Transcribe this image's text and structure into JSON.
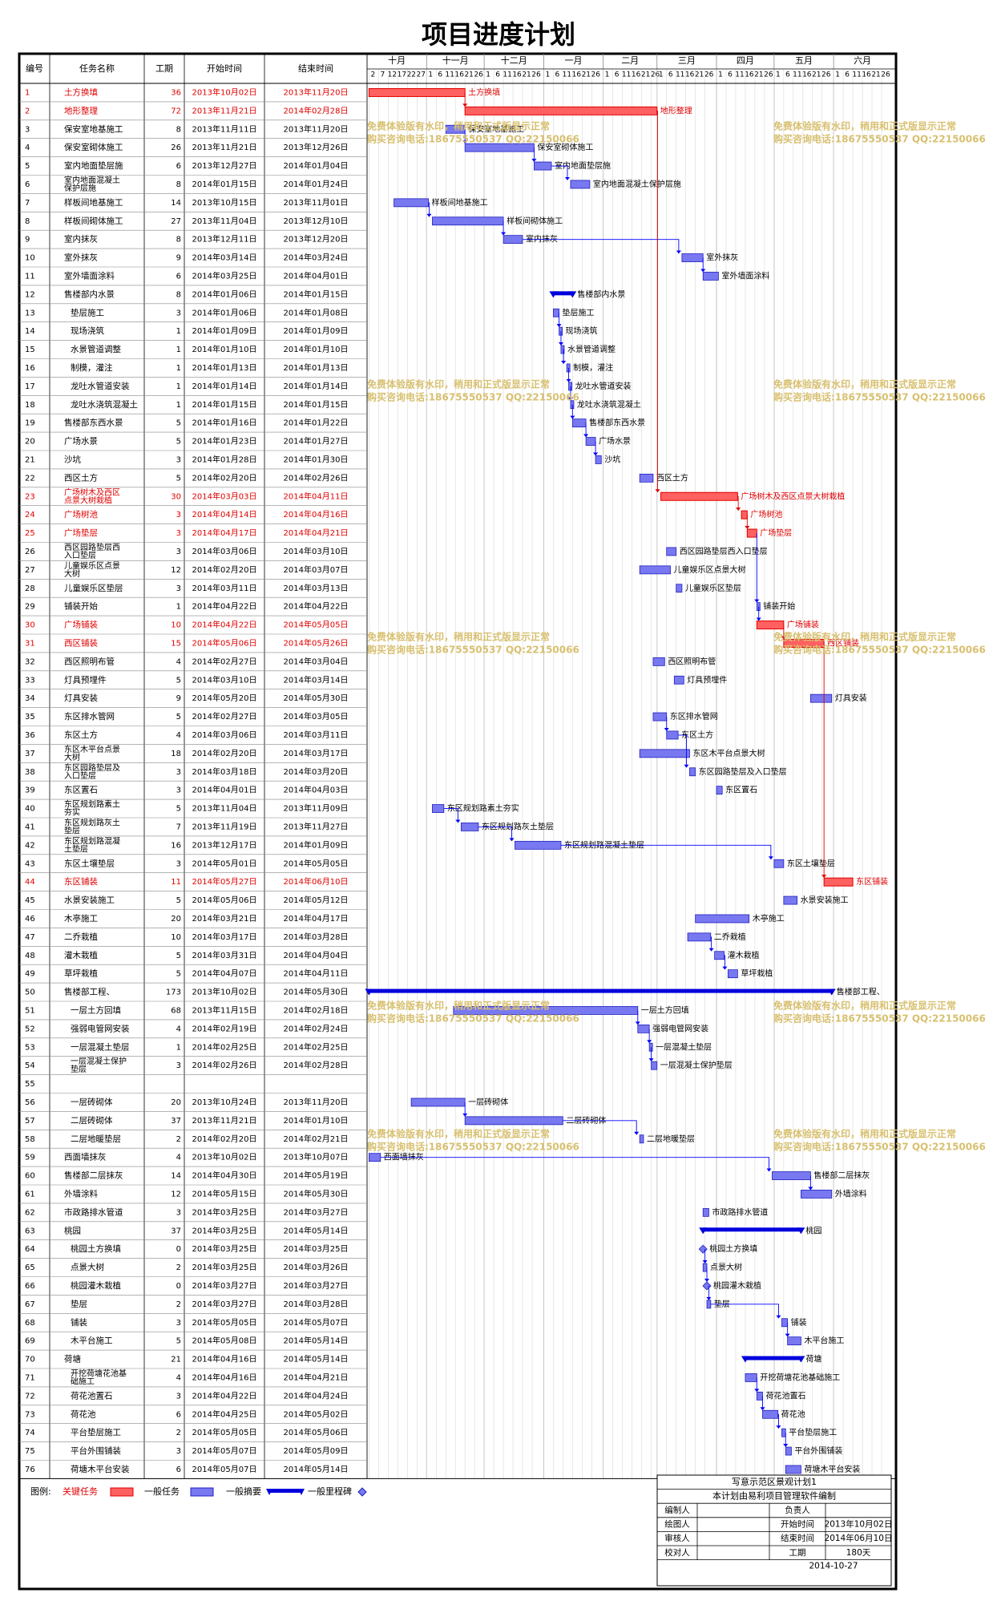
{
  "title": "项目进度计划",
  "headers": {
    "id": "编号",
    "name": "任务名称",
    "dur": "工期",
    "start": "开始时间",
    "end": "结束时间"
  },
  "months": [
    "十月",
    "十一月",
    "十二月",
    "一月",
    "二月",
    "三月",
    "四月",
    "五月",
    "六月"
  ],
  "day_ticks": [
    "1",
    "6",
    "11",
    "16",
    "21",
    "26"
  ],
  "oct_ticks": [
    "2",
    "7",
    "12",
    "17",
    "22",
    "27"
  ],
  "watermark": {
    "line1": "免费体验版有水印，稍用和正式版显示正常",
    "line2": "购买咨询电话:18675550537 QQ:22150066"
  },
  "colors": {
    "critical": "#ff6060",
    "critical_border": "#e00000",
    "normal": "#7878f0",
    "normal_border": "#2020c0",
    "summary": "#0000dd",
    "link": "#0000ff",
    "watermark": "#d8c070"
  },
  "chart_data": {
    "type": "gantt",
    "title": "项目进度计划",
    "timeline_start": "2013-10-01",
    "timeline_end": "2014-06-30",
    "tasks": [
      {
        "id": "1",
        "name": "土方换填",
        "dur": "36",
        "start": "2013年10月02日",
        "end": "2013年11月20日",
        "kind": "critical"
      },
      {
        "id": "2",
        "name": "地形整理",
        "dur": "72",
        "start": "2013年11月21日",
        "end": "2014年02月28日",
        "kind": "critical"
      },
      {
        "id": "3",
        "name": "保安室地基施工",
        "dur": "8",
        "start": "2013年11月11日",
        "end": "2013年11月20日",
        "kind": "normal"
      },
      {
        "id": "4",
        "name": "保安室砌体施工",
        "dur": "26",
        "start": "2013年11月21日",
        "end": "2013年12月26日",
        "kind": "normal"
      },
      {
        "id": "5",
        "name": "室内地面垫层施",
        "dur": "6",
        "start": "2013年12月27日",
        "end": "2014年01月04日",
        "kind": "normal"
      },
      {
        "id": "6",
        "name": "室内地面混凝土保护层施",
        "dur": "8",
        "start": "2014年01月15日",
        "end": "2014年01月24日",
        "kind": "normal"
      },
      {
        "id": "7",
        "name": "样板间地基施工",
        "dur": "14",
        "start": "2013年10月15日",
        "end": "2013年11月01日",
        "kind": "normal"
      },
      {
        "id": "8",
        "name": "样板间砌体施工",
        "dur": "27",
        "start": "2013年11月04日",
        "end": "2013年12月10日",
        "kind": "normal"
      },
      {
        "id": "9",
        "name": "室内抹灰",
        "dur": "8",
        "start": "2013年12月11日",
        "end": "2013年12月20日",
        "kind": "normal"
      },
      {
        "id": "10",
        "name": "室外抹灰",
        "dur": "9",
        "start": "2014年03月14日",
        "end": "2014年03月24日",
        "kind": "normal"
      },
      {
        "id": "11",
        "name": "室外墙面涂料",
        "dur": "6",
        "start": "2014年03月25日",
        "end": "2014年04月01日",
        "kind": "normal"
      },
      {
        "id": "12",
        "name": "售楼部内水景",
        "dur": "8",
        "start": "2014年01月06日",
        "end": "2014年01月15日",
        "kind": "summary"
      },
      {
        "id": "13",
        "name": "垫层施工",
        "dur": "3",
        "start": "2014年01月06日",
        "end": "2014年01月08日",
        "kind": "normal",
        "indent": 1
      },
      {
        "id": "14",
        "name": "现场浇筑",
        "dur": "1",
        "start": "2014年01月09日",
        "end": "2014年01月09日",
        "kind": "normal",
        "indent": 1
      },
      {
        "id": "15",
        "name": "水景管道调整",
        "dur": "1",
        "start": "2014年01月10日",
        "end": "2014年01月10日",
        "kind": "normal",
        "indent": 1
      },
      {
        "id": "16",
        "name": "制模，灌注",
        "dur": "1",
        "start": "2014年01月13日",
        "end": "2014年01月13日",
        "kind": "normal",
        "indent": 1
      },
      {
        "id": "17",
        "name": "龙吐水管道安装",
        "dur": "1",
        "start": "2014年01月14日",
        "end": "2014年01月14日",
        "kind": "normal",
        "indent": 1
      },
      {
        "id": "18",
        "name": "龙吐水浇筑混凝土",
        "dur": "1",
        "start": "2014年01月15日",
        "end": "2014年01月15日",
        "kind": "normal",
        "indent": 1
      },
      {
        "id": "19",
        "name": "售楼部东西水景",
        "dur": "5",
        "start": "2014年01月16日",
        "end": "2014年01月22日",
        "kind": "normal"
      },
      {
        "id": "20",
        "name": "广场水景",
        "dur": "5",
        "start": "2014年01月23日",
        "end": "2014年01月27日",
        "kind": "normal"
      },
      {
        "id": "21",
        "name": "沙坑",
        "dur": "3",
        "start": "2014年01月28日",
        "end": "2014年01月30日",
        "kind": "normal"
      },
      {
        "id": "22",
        "name": "西区土方",
        "dur": "5",
        "start": "2014年02月20日",
        "end": "2014年02月26日",
        "kind": "normal"
      },
      {
        "id": "23",
        "name": "广场树木及西区点景大树栽植",
        "dur": "30",
        "start": "2014年03月03日",
        "end": "2014年04月11日",
        "kind": "critical"
      },
      {
        "id": "24",
        "name": "广场树池",
        "dur": "3",
        "start": "2014年04月14日",
        "end": "2014年04月16日",
        "kind": "critical"
      },
      {
        "id": "25",
        "name": "广场垫层",
        "dur": "3",
        "start": "2014年04月17日",
        "end": "2014年04月21日",
        "kind": "critical"
      },
      {
        "id": "26",
        "name": "西区园路垫层西入口垫层",
        "dur": "3",
        "start": "2014年03月06日",
        "end": "2014年03月10日",
        "kind": "normal"
      },
      {
        "id": "27",
        "name": "儿童娱乐区点景大树",
        "dur": "12",
        "start": "2014年02月20日",
        "end": "2014年03月07日",
        "kind": "normal"
      },
      {
        "id": "28",
        "name": "儿童娱乐区垫层",
        "dur": "3",
        "start": "2014年03月11日",
        "end": "2014年03月13日",
        "kind": "normal"
      },
      {
        "id": "29",
        "name": "铺装开始",
        "dur": "1",
        "start": "2014年04月22日",
        "end": "2014年04月22日",
        "kind": "normal"
      },
      {
        "id": "30",
        "name": "广场铺装",
        "dur": "10",
        "start": "2014年04月22日",
        "end": "2014年05月05日",
        "kind": "critical"
      },
      {
        "id": "31",
        "name": "西区铺装",
        "dur": "15",
        "start": "2014年05月06日",
        "end": "2014年05月26日",
        "kind": "critical"
      },
      {
        "id": "32",
        "name": "西区照明布管",
        "dur": "4",
        "start": "2014年02月27日",
        "end": "2014年03月04日",
        "kind": "normal"
      },
      {
        "id": "33",
        "name": "灯具预埋件",
        "dur": "5",
        "start": "2014年03月10日",
        "end": "2014年03月14日",
        "kind": "normal"
      },
      {
        "id": "34",
        "name": "灯具安装",
        "dur": "9",
        "start": "2014年05月20日",
        "end": "2014年05月30日",
        "kind": "normal"
      },
      {
        "id": "35",
        "name": "东区排水管网",
        "dur": "5",
        "start": "2014年02月27日",
        "end": "2014年03月05日",
        "kind": "normal"
      },
      {
        "id": "36",
        "name": "东区土方",
        "dur": "4",
        "start": "2014年03月06日",
        "end": "2014年03月11日",
        "kind": "normal"
      },
      {
        "id": "37",
        "name": "东区木平台点景大树",
        "dur": "18",
        "start": "2014年02月20日",
        "end": "2014年03月17日",
        "kind": "normal"
      },
      {
        "id": "38",
        "name": "东区园路垫层及入口垫层",
        "dur": "3",
        "start": "2014年03月18日",
        "end": "2014年03月20日",
        "kind": "normal"
      },
      {
        "id": "39",
        "name": "东区置石",
        "dur": "3",
        "start": "2014年04月01日",
        "end": "2014年04月03日",
        "kind": "normal"
      },
      {
        "id": "40",
        "name": "东区规划路素土夯实",
        "dur": "5",
        "start": "2013年11月04日",
        "end": "2013年11月09日",
        "kind": "normal"
      },
      {
        "id": "41",
        "name": "东区规划路灰土垫层",
        "dur": "7",
        "start": "2013年11月19日",
        "end": "2013年11月27日",
        "kind": "normal"
      },
      {
        "id": "42",
        "name": "东区规划路混凝土垫层",
        "dur": "16",
        "start": "2013年12月17日",
        "end": "2014年01月09日",
        "kind": "normal"
      },
      {
        "id": "43",
        "name": "东区土壤垫层",
        "dur": "3",
        "start": "2014年05月01日",
        "end": "2014年05月05日",
        "kind": "normal"
      },
      {
        "id": "44",
        "name": "东区铺装",
        "dur": "11",
        "start": "2014年05月27日",
        "end": "2014年06月10日",
        "kind": "critical"
      },
      {
        "id": "45",
        "name": "水景安装施工",
        "dur": "5",
        "start": "2014年05月06日",
        "end": "2014年05月12日",
        "kind": "normal"
      },
      {
        "id": "46",
        "name": "木亭施工",
        "dur": "20",
        "start": "2014年03月21日",
        "end": "2014年04月17日",
        "kind": "normal"
      },
      {
        "id": "47",
        "name": "二乔栽植",
        "dur": "10",
        "start": "2014年03月17日",
        "end": "2014年03月28日",
        "kind": "normal"
      },
      {
        "id": "48",
        "name": "灌木栽植",
        "dur": "5",
        "start": "2014年03月31日",
        "end": "2014年04月04日",
        "kind": "normal"
      },
      {
        "id": "49",
        "name": "草坪栽植",
        "dur": "5",
        "start": "2014年04月07日",
        "end": "2014年04月11日",
        "kind": "normal"
      },
      {
        "id": "50",
        "name": "售楼部工程、",
        "dur": "173",
        "start": "2013年10月02日",
        "end": "2014年05月30日",
        "kind": "summary"
      },
      {
        "id": "51",
        "name": "一层土方回填",
        "dur": "68",
        "start": "2013年11月15日",
        "end": "2014年02月18日",
        "kind": "normal",
        "indent": 1
      },
      {
        "id": "52",
        "name": "强弱电管网安装",
        "dur": "4",
        "start": "2014年02月19日",
        "end": "2014年02月24日",
        "kind": "normal",
        "indent": 1
      },
      {
        "id": "53",
        "name": "一层混凝土垫层",
        "dur": "1",
        "start": "2014年02月25日",
        "end": "2014年02月25日",
        "kind": "normal",
        "indent": 1
      },
      {
        "id": "54",
        "name": "一层混凝土保护垫层",
        "dur": "3",
        "start": "2014年02月26日",
        "end": "2014年02月28日",
        "kind": "normal",
        "indent": 1
      },
      {
        "id": "55",
        "name": "",
        "dur": "",
        "start": "",
        "end": "",
        "kind": "none"
      },
      {
        "id": "56",
        "name": "一层砖砌体",
        "dur": "20",
        "start": "2013年10月24日",
        "end": "2013年11月20日",
        "kind": "normal",
        "indent": 1
      },
      {
        "id": "57",
        "name": "二层砖砌体",
        "dur": "37",
        "start": "2013年11月21日",
        "end": "2014年01月10日",
        "kind": "normal",
        "indent": 1
      },
      {
        "id": "58",
        "name": "二层地暖垫层",
        "dur": "2",
        "start": "2014年02月20日",
        "end": "2014年02月21日",
        "kind": "normal",
        "indent": 1
      },
      {
        "id": "59",
        "name": "西面墙抹灰",
        "dur": "4",
        "start": "2013年10月02日",
        "end": "2013年10月07日",
        "kind": "normal"
      },
      {
        "id": "60",
        "name": "售楼部二层抹灰",
        "dur": "14",
        "start": "2014年04月30日",
        "end": "2014年05月19日",
        "kind": "normal"
      },
      {
        "id": "61",
        "name": "外墙涂料",
        "dur": "12",
        "start": "2014年05月15日",
        "end": "2014年05月30日",
        "kind": "normal"
      },
      {
        "id": "62",
        "name": "市政路排水管道",
        "dur": "3",
        "start": "2014年03月25日",
        "end": "2014年03月27日",
        "kind": "normal"
      },
      {
        "id": "63",
        "name": "桃园",
        "dur": "37",
        "start": "2014年03月25日",
        "end": "2014年05月14日",
        "kind": "summary"
      },
      {
        "id": "64",
        "name": "桃园土方换填",
        "dur": "0",
        "start": "2014年03月25日",
        "end": "2014年03月25日",
        "kind": "milestone",
        "indent": 1
      },
      {
        "id": "65",
        "name": "点景大树",
        "dur": "2",
        "start": "2014年03月25日",
        "end": "2014年03月26日",
        "kind": "normal",
        "indent": 1
      },
      {
        "id": "66",
        "name": "桃园灌木栽植",
        "dur": "0",
        "start": "2014年03月27日",
        "end": "2014年03月27日",
        "kind": "milestone",
        "indent": 1
      },
      {
        "id": "67",
        "name": "垫层",
        "dur": "2",
        "start": "2014年03月27日",
        "end": "2014年03月28日",
        "kind": "normal",
        "indent": 1
      },
      {
        "id": "68",
        "name": "铺装",
        "dur": "3",
        "start": "2014年05月05日",
        "end": "2014年05月07日",
        "kind": "normal",
        "indent": 1
      },
      {
        "id": "69",
        "name": "木平台施工",
        "dur": "5",
        "start": "2014年05月08日",
        "end": "2014年05月14日",
        "kind": "normal",
        "indent": 1
      },
      {
        "id": "70",
        "name": "荷塘",
        "dur": "21",
        "start": "2014年04月16日",
        "end": "2014年05月14日",
        "kind": "summary"
      },
      {
        "id": "71",
        "name": "开挖荷塘花池基础施工",
        "dur": "4",
        "start": "2014年04月16日",
        "end": "2014年04月21日",
        "kind": "normal",
        "indent": 1
      },
      {
        "id": "72",
        "name": "荷花池置石",
        "dur": "3",
        "start": "2014年04月22日",
        "end": "2014年04月24日",
        "kind": "normal",
        "indent": 1
      },
      {
        "id": "73",
        "name": "荷花池",
        "dur": "6",
        "start": "2014年04月25日",
        "end": "2014年05月02日",
        "kind": "normal",
        "indent": 1
      },
      {
        "id": "74",
        "name": "平台垫层施工",
        "dur": "2",
        "start": "2014年05月05日",
        "end": "2014年05月06日",
        "kind": "normal",
        "indent": 1
      },
      {
        "id": "75",
        "name": "平台外围铺装",
        "dur": "3",
        "start": "2014年05月07日",
        "end": "2014年05月09日",
        "kind": "normal",
        "indent": 1
      },
      {
        "id": "76",
        "name": "荷塘木平台安装",
        "dur": "6",
        "start": "2014年05月07日",
        "end": "2014年05月14日",
        "kind": "normal",
        "indent": 1
      }
    ]
  },
  "legend": {
    "label": "图例:",
    "critical": "关键任务",
    "normal": "一般任务",
    "summary": "一般摘要",
    "milestone": "一般里程碑"
  },
  "info": {
    "project": "写意示范区景观计划1",
    "software": "本计划由易利项目管理软件编制",
    "preparer_label": "编制人",
    "owner_label": "负责人",
    "drawer_label": "绘图人",
    "start_label": "开始时间",
    "start_value": "2013年10月02日",
    "reviewer_label": "审核人",
    "end_label": "结束时间",
    "end_value": "2014年06月10日",
    "checker_label": "校对人",
    "duration_label": "工期",
    "duration_value": "180天",
    "date": "2014-10-27"
  }
}
